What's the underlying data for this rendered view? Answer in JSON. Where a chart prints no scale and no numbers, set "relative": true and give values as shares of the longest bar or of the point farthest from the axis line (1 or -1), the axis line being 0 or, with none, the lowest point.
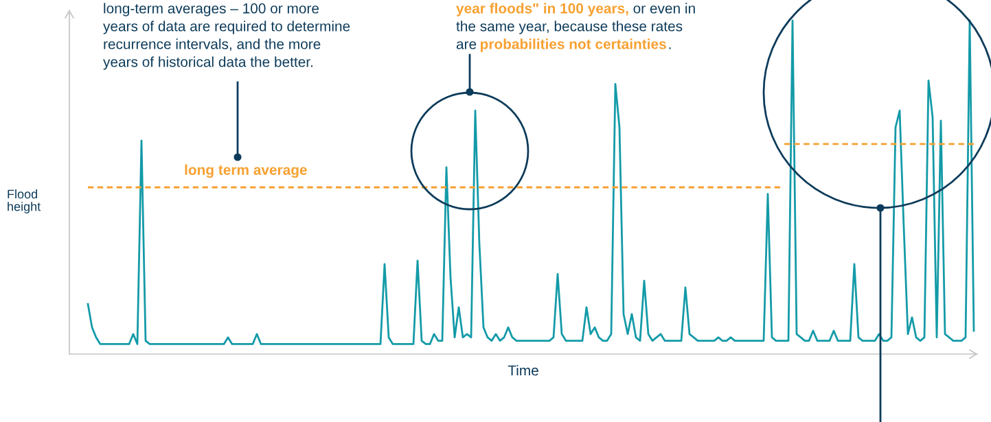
{
  "chart_data": {
    "type": "line",
    "relative": true,
    "xlabel": "Time",
    "ylabel": "Flood height",
    "grid": false,
    "legend": false,
    "marker": "none",
    "annotations": [
      "long-term averages – 100 or more",
      "years of data are required to determine",
      "recurrence intervals, and the more",
      "years of historical data the better.",
      "year floods\" in 100 years,",
      "or even in",
      "the same year, because these rates",
      "are",
      "probabilities not certainties",
      "."
    ],
    "categories": [
      null,
      null,
      null,
      null,
      null,
      null,
      null,
      null,
      null,
      null,
      null,
      null,
      null,
      null,
      null,
      null,
      null,
      null,
      null,
      null,
      null,
      null,
      null,
      null,
      null,
      null,
      null,
      null,
      null,
      null,
      null,
      null,
      null,
      null,
      null,
      null,
      null,
      null,
      null,
      null,
      null,
      null,
      null,
      null,
      null,
      null,
      null,
      null,
      null,
      null,
      null,
      null,
      null,
      null,
      null,
      null,
      null,
      null,
      null,
      null,
      null,
      null,
      null,
      null,
      null,
      null,
      null,
      null,
      null,
      null,
      null,
      null,
      null,
      null,
      null,
      null,
      null,
      null,
      null,
      null,
      null,
      null,
      null,
      null,
      null,
      null,
      null,
      null,
      null,
      null,
      null,
      null,
      null,
      null,
      null,
      null,
      null,
      null,
      null,
      null,
      null,
      null,
      null,
      null,
      null,
      null,
      null,
      null,
      null,
      null,
      null,
      null,
      null,
      null,
      null,
      null,
      null,
      null,
      null,
      null,
      null,
      null,
      null,
      null,
      null,
      null,
      null,
      null,
      null,
      null,
      null,
      null,
      null,
      null,
      null,
      null,
      null,
      null,
      null,
      null,
      null,
      null,
      null,
      null,
      null,
      null,
      null,
      null,
      null,
      null,
      null,
      null,
      null,
      null,
      null,
      null,
      null,
      null,
      null,
      null,
      null,
      null,
      null,
      null,
      null,
      null,
      null,
      null,
      null,
      null,
      null,
      null,
      null,
      null,
      null,
      null,
      null,
      null,
      null,
      null,
      null,
      null,
      null,
      null,
      null,
      null,
      null,
      null,
      null,
      null,
      null,
      null,
      null,
      null,
      null,
      null,
      null,
      null,
      null,
      null,
      null,
      null,
      null,
      null,
      null,
      null,
      null,
      null,
      null,
      null,
      null,
      null,
      null,
      null,
      null,
      null
    ],
    "series": [
      {
        "color": "#139aa8",
        "line_style": "solid",
        "values": [
          0.15,
          0.08,
          0.05,
          0.03,
          0.03,
          0.03,
          0.03,
          0.03,
          0.03,
          0.03,
          0.03,
          0.06,
          0.03,
          0.64,
          0.04,
          0.03,
          0.03,
          0.03,
          0.03,
          0.03,
          0.03,
          0.03,
          0.03,
          0.03,
          0.03,
          0.03,
          0.03,
          0.03,
          0.03,
          0.03,
          0.03,
          0.03,
          0.03,
          0.03,
          0.05,
          0.03,
          0.03,
          0.03,
          0.03,
          0.03,
          0.03,
          0.06,
          0.03,
          0.03,
          0.03,
          0.03,
          0.03,
          0.03,
          0.03,
          0.03,
          0.03,
          0.03,
          0.03,
          0.03,
          0.03,
          0.03,
          0.03,
          0.03,
          0.03,
          0.03,
          0.03,
          0.03,
          0.03,
          0.03,
          0.03,
          0.03,
          0.03,
          0.03,
          0.03,
          0.03,
          0.03,
          0.03,
          0.27,
          0.05,
          0.03,
          0.03,
          0.03,
          0.03,
          0.03,
          0.03,
          0.28,
          0.04,
          0.03,
          0.03,
          0.06,
          0.04,
          0.04,
          0.56,
          0.23,
          0.05,
          0.14,
          0.05,
          0.06,
          0.05,
          0.73,
          0.33,
          0.08,
          0.05,
          0.04,
          0.06,
          0.04,
          0.05,
          0.08,
          0.05,
          0.04,
          0.04,
          0.04,
          0.04,
          0.04,
          0.04,
          0.04,
          0.04,
          0.04,
          0.05,
          0.24,
          0.06,
          0.04,
          0.04,
          0.04,
          0.04,
          0.04,
          0.14,
          0.06,
          0.08,
          0.05,
          0.04,
          0.04,
          0.06,
          0.81,
          0.68,
          0.12,
          0.06,
          0.12,
          0.05,
          0.04,
          0.22,
          0.06,
          0.04,
          0.05,
          0.06,
          0.04,
          0.04,
          0.04,
          0.04,
          0.04,
          0.2,
          0.06,
          0.05,
          0.04,
          0.04,
          0.04,
          0.04,
          0.04,
          0.05,
          0.04,
          0.04,
          0.05,
          0.04,
          0.04,
          0.04,
          0.04,
          0.04,
          0.04,
          0.04,
          0.04,
          0.48,
          0.05,
          0.04,
          0.04,
          0.04,
          0.04,
          1.0,
          0.06,
          0.05,
          0.04,
          0.04,
          0.07,
          0.04,
          0.04,
          0.04,
          0.04,
          0.07,
          0.04,
          0.04,
          0.04,
          0.04,
          0.27,
          0.05,
          0.04,
          0.04,
          0.04,
          0.04,
          0.06,
          0.04,
          0.04,
          0.05,
          0.68,
          0.73,
          0.38,
          0.06,
          0.11,
          0.05,
          0.04,
          0.05,
          0.82,
          0.71,
          0.05,
          0.7,
          0.06,
          0.05,
          0.04,
          0.04,
          0.04,
          0.05,
          1.0,
          0.07
        ]
      },
      {
        "name": "long term average",
        "color": "#f7a030",
        "line_style": "dashed",
        "values": [
          0.5,
          0.5,
          0.5,
          0.5,
          0.5,
          0.5,
          0.5,
          0.5,
          0.5,
          0.5,
          0.5,
          0.5,
          0.5,
          0.5,
          0.5,
          0.5,
          0.5,
          0.5,
          0.5,
          0.5,
          0.5,
          0.5,
          0.5,
          0.5,
          0.5,
          0.5,
          0.5,
          0.5,
          0.5,
          0.5,
          0.5,
          0.5,
          0.5,
          0.5,
          0.5,
          0.5,
          0.5,
          0.5,
          0.5,
          0.5,
          0.5,
          0.5,
          0.5,
          0.5,
          0.5,
          0.5,
          0.5,
          0.5,
          0.5,
          0.5,
          0.5,
          0.5,
          0.5,
          0.5,
          0.5,
          0.5,
          0.5,
          0.5,
          0.5,
          0.5,
          0.5,
          0.5,
          0.5,
          0.5,
          0.5,
          0.5,
          0.5,
          0.5,
          0.5,
          0.5,
          0.5,
          0.5,
          0.5,
          0.5,
          0.5,
          0.5,
          0.5,
          0.5,
          0.5,
          0.5,
          0.5,
          0.5,
          0.5,
          0.5,
          0.5,
          0.5,
          0.5,
          0.5,
          0.5,
          0.5,
          0.5,
          0.5,
          0.5,
          0.5,
          0.5,
          0.5,
          0.5,
          0.5,
          0.5,
          0.5,
          0.5,
          0.5,
          0.5,
          0.5,
          0.5,
          0.5,
          0.5,
          0.5,
          0.5,
          0.5,
          0.5,
          0.5,
          0.5,
          0.5,
          0.5,
          0.5,
          0.5,
          0.5,
          0.5,
          0.5,
          0.5,
          0.5,
          0.5,
          0.5,
          0.5,
          0.5,
          0.5,
          0.5,
          0.5,
          0.5,
          0.5,
          0.5,
          0.5,
          0.5,
          0.5,
          0.5,
          0.5,
          0.5,
          0.5,
          0.5,
          0.5,
          0.5,
          0.5,
          0.5,
          0.5,
          0.5,
          0.5,
          0.5,
          0.5,
          0.5,
          0.5,
          0.5,
          0.5,
          0.5,
          0.5,
          0.5,
          0.5,
          0.5,
          0.5,
          0.5,
          0.5,
          0.5,
          0.5,
          0.5,
          0.5,
          0.5,
          0.5,
          0.5,
          0.5,
          null,
          null,
          null,
          null,
          null,
          null,
          null,
          null,
          null,
          null,
          null,
          null,
          null,
          null,
          null,
          null,
          null,
          null,
          null,
          null,
          null,
          null,
          null,
          null,
          null,
          null,
          null,
          null,
          null,
          null,
          null,
          null,
          null,
          null,
          null,
          null,
          null,
          null,
          null,
          null,
          null,
          null,
          null,
          null,
          null,
          null,
          null
        ]
      },
      {
        "color": "#f7a030",
        "line_style": "dashed",
        "values": [
          null,
          null,
          null,
          null,
          null,
          null,
          null,
          null,
          null,
          null,
          null,
          null,
          null,
          null,
          null,
          null,
          null,
          null,
          null,
          null,
          null,
          null,
          null,
          null,
          null,
          null,
          null,
          null,
          null,
          null,
          null,
          null,
          null,
          null,
          null,
          null,
          null,
          null,
          null,
          null,
          null,
          null,
          null,
          null,
          null,
          null,
          null,
          null,
          null,
          null,
          null,
          null,
          null,
          null,
          null,
          null,
          null,
          null,
          null,
          null,
          null,
          null,
          null,
          null,
          null,
          null,
          null,
          null,
          null,
          null,
          null,
          null,
          null,
          null,
          null,
          null,
          null,
          null,
          null,
          null,
          null,
          null,
          null,
          null,
          null,
          null,
          null,
          null,
          null,
          null,
          null,
          null,
          null,
          null,
          null,
          null,
          null,
          null,
          null,
          null,
          null,
          null,
          null,
          null,
          null,
          null,
          null,
          null,
          null,
          null,
          null,
          null,
          null,
          null,
          null,
          null,
          null,
          null,
          null,
          null,
          null,
          null,
          null,
          null,
          null,
          null,
          null,
          null,
          null,
          null,
          null,
          null,
          null,
          null,
          null,
          null,
          null,
          null,
          null,
          null,
          null,
          null,
          null,
          null,
          null,
          null,
          null,
          null,
          null,
          null,
          null,
          null,
          null,
          null,
          null,
          null,
          null,
          null,
          null,
          null,
          null,
          null,
          null,
          null,
          null,
          null,
          null,
          null,
          null,
          0.63,
          0.63,
          0.63,
          0.63,
          0.63,
          0.63,
          0.63,
          0.63,
          0.63,
          0.63,
          0.63,
          0.63,
          0.63,
          0.63,
          0.63,
          0.63,
          0.63,
          0.63,
          0.63,
          0.63,
          0.63,
          0.63,
          0.63,
          0.63,
          0.63,
          0.63,
          0.63,
          0.63,
          0.63,
          0.63,
          0.63,
          0.63,
          0.63,
          0.63,
          0.63,
          0.63,
          0.63,
          0.63,
          0.63,
          0.63,
          0.63,
          0.63,
          0.63,
          0.63,
          0.63,
          0.63,
          0.63
        ]
      }
    ]
  }
}
